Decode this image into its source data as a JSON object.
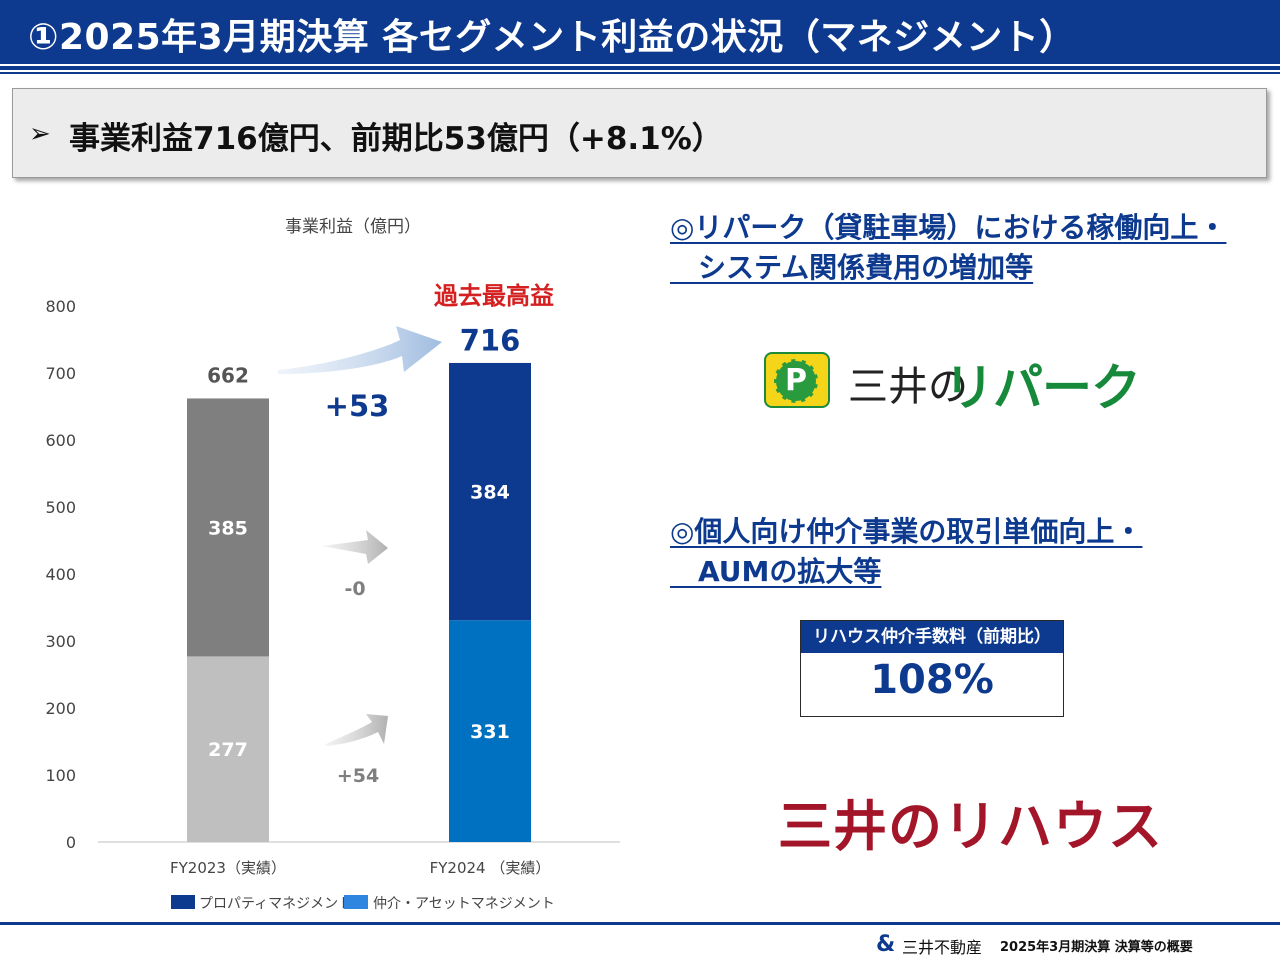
{
  "header": {
    "title": "①2025年3月期決算 各セグメント利益の状況（マネジメント）"
  },
  "summary": {
    "arrow": "➢",
    "text": "事業利益716億円、前期比53億円（+8.1%）"
  },
  "chart_data": {
    "type": "bar",
    "stacked": true,
    "title": "事業利益（億円）",
    "categories": [
      "FY2023（実績）",
      "FY2024 （実績）"
    ],
    "ylim": [
      0,
      800
    ],
    "yticks": [
      0,
      100,
      200,
      300,
      400,
      500,
      600,
      700,
      800
    ],
    "series": [
      {
        "name": "仲介・アセットマネジメント",
        "values": [
          277,
          331
        ],
        "colors": [
          "#bfbfbf",
          "#0070c0"
        ]
      },
      {
        "name": "プロパティマネジメント",
        "values": [
          385,
          384
        ],
        "colors": [
          "#7f7f7f",
          "#0d3a8e"
        ]
      }
    ],
    "totals": [
      662,
      716
    ],
    "legend": [
      {
        "name": "プロパティマネジメント",
        "color": "#0d3a8e"
      },
      {
        "name": "仲介・アセットマネジメント",
        "color": "#2e86e0"
      }
    ],
    "annotations": {
      "record_label": "過去最高益",
      "total_change": "+53",
      "property_change": "-0",
      "brokerage_change": "+54"
    },
    "grid": false,
    "legend_position": "bottom"
  },
  "notes": [
    {
      "line1": "◎リパーク（貸駐車場）における稼働向上・",
      "line2": "　システム関係費用の増加等"
    },
    {
      "line1": "◎個人向け仲介事業の取引単価向上・",
      "line2": "　AUMの拡大等"
    }
  ],
  "repark_logo": {
    "badge": "P",
    "text1": "三井の",
    "text2": "リパーク"
  },
  "fee_box": {
    "label": "リハウス仲介手数料（前期比）",
    "value": "108%"
  },
  "rehouse_logo": {
    "text": "三井のリハウス"
  },
  "footer": {
    "mark": "&",
    "company": "三井不動産",
    "doc_title": "2025年3月期決算  決算等の概要"
  },
  "colors": {
    "brand_navy": "#0d3a8e",
    "record_red": "#d42020",
    "repark_green": "#17893a",
    "rehouse_red": "#a31529"
  }
}
